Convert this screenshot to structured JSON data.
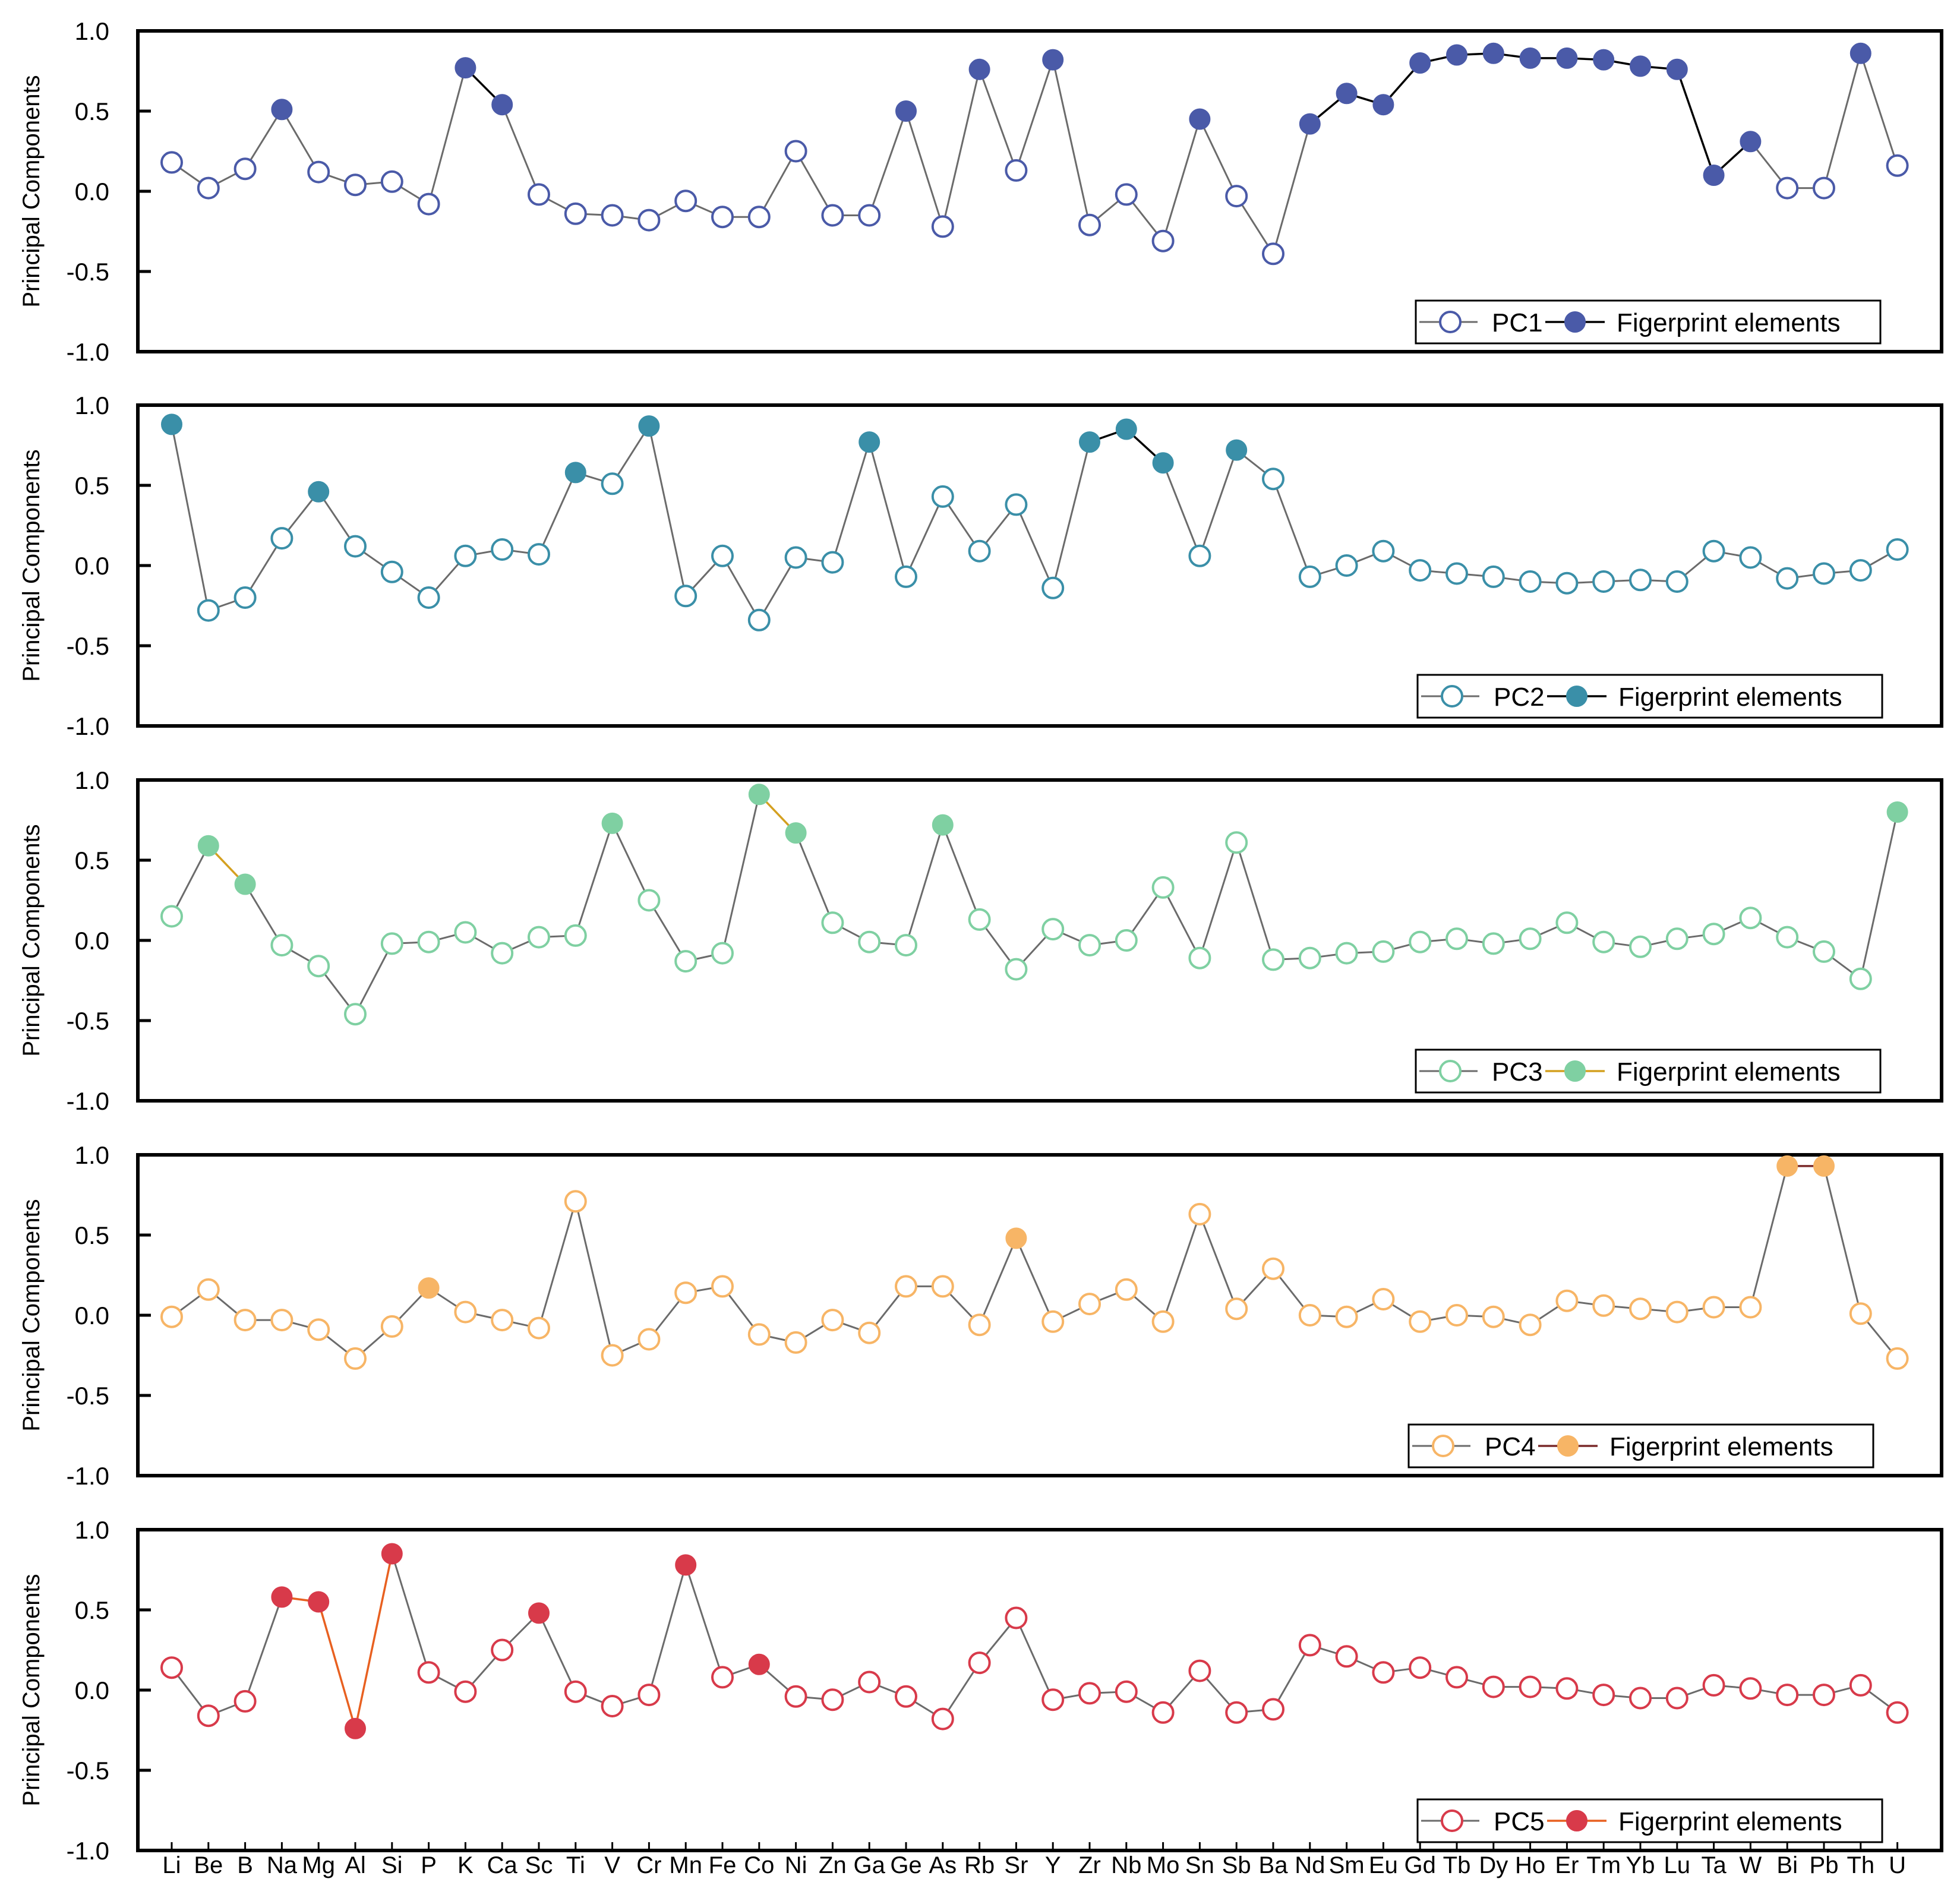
{
  "chart_data": {
    "type": "line",
    "ylabel": "Principal Components",
    "ylim": [
      -1.0,
      1.0
    ],
    "yticks": [
      "1.0",
      "0.5",
      "0.0",
      "-0.5",
      "-1.0"
    ],
    "yticks_values": [
      1.0,
      0.5,
      0.0,
      -0.5,
      -1.0
    ],
    "categories": [
      "Li",
      "Be",
      "B",
      "Na",
      "Mg",
      "Al",
      "Si",
      "P",
      "K",
      "Ca",
      "Sc",
      "Ti",
      "V",
      "Cr",
      "Mn",
      "Fe",
      "Co",
      "Ni",
      "Zn",
      "Ga",
      "Ge",
      "As",
      "Rb",
      "Sr",
      "Y",
      "Zr",
      "Nb",
      "Mo",
      "Sn",
      "Sb",
      "Ba",
      "Nd",
      "Sm",
      "Eu",
      "Gd",
      "Tb",
      "Dy",
      "Ho",
      "Er",
      "Tm",
      "Yb",
      "Lu",
      "Ta",
      "W",
      "Bi",
      "Pb",
      "Th",
      "U"
    ],
    "legend_position": "bottom-right",
    "fingerprint_label": "Figerprint elements",
    "panels": [
      {
        "name": "PC1",
        "color": "#4a5aa8",
        "fingerprint_line_color": "#000000",
        "values": [
          0.18,
          0.02,
          0.14,
          0.51,
          0.12,
          0.04,
          0.06,
          -0.08,
          0.77,
          0.54,
          -0.02,
          -0.14,
          -0.15,
          -0.18,
          -0.06,
          -0.16,
          -0.16,
          0.25,
          -0.15,
          -0.15,
          0.5,
          -0.22,
          0.76,
          0.13,
          0.82,
          -0.21,
          -0.02,
          -0.31,
          0.45,
          -0.03,
          -0.39,
          0.42,
          0.61,
          0.54,
          0.8,
          0.85,
          0.86,
          0.83,
          0.83,
          0.82,
          0.78,
          0.76,
          0.1,
          0.31,
          0.02,
          0.02,
          0.86,
          0.16
        ],
        "fingerprint": [
          3,
          8,
          9,
          20,
          22,
          24,
          28,
          31,
          32,
          33,
          34,
          35,
          36,
          37,
          38,
          39,
          40,
          41,
          42,
          43,
          46
        ]
      },
      {
        "name": "PC2",
        "color": "#3a8fa8",
        "fingerprint_line_color": "#000000",
        "values": [
          0.88,
          -0.28,
          -0.2,
          0.17,
          0.46,
          0.12,
          -0.04,
          -0.2,
          0.06,
          0.1,
          0.07,
          0.58,
          0.51,
          0.87,
          -0.19,
          0.06,
          -0.34,
          0.05,
          0.02,
          0.77,
          -0.07,
          0.43,
          0.09,
          0.38,
          -0.14,
          0.77,
          0.85,
          0.64,
          0.06,
          0.72,
          0.54,
          -0.07,
          0.0,
          0.09,
          -0.03,
          -0.05,
          -0.07,
          -0.1,
          -0.11,
          -0.1,
          -0.09,
          -0.1,
          0.09,
          0.05,
          -0.08,
          -0.05,
          -0.03,
          0.1
        ],
        "fingerprint": [
          0,
          4,
          11,
          13,
          19,
          25,
          26,
          27,
          29
        ]
      },
      {
        "name": "PC3",
        "color": "#7fd0a2",
        "fingerprint_line_color": "#d4a020",
        "values": [
          0.15,
          0.59,
          0.35,
          -0.03,
          -0.16,
          -0.46,
          -0.02,
          -0.01,
          0.05,
          -0.08,
          0.02,
          0.03,
          0.73,
          0.25,
          -0.13,
          -0.08,
          0.91,
          0.67,
          0.11,
          -0.01,
          -0.03,
          0.72,
          0.13,
          -0.18,
          0.07,
          -0.03,
          0.0,
          0.33,
          -0.11,
          0.61,
          -0.12,
          -0.11,
          -0.08,
          -0.07,
          -0.01,
          0.01,
          -0.02,
          0.01,
          0.11,
          -0.01,
          -0.04,
          0.01,
          0.04,
          0.14,
          0.02,
          -0.07,
          -0.24,
          0.8
        ],
        "fingerprint": [
          1,
          2,
          12,
          16,
          17,
          21,
          47
        ]
      },
      {
        "name": "PC4",
        "color": "#f7b566",
        "fingerprint_line_color": "#7a2a2a",
        "values": [
          -0.01,
          0.16,
          -0.03,
          -0.03,
          -0.09,
          -0.27,
          -0.07,
          0.17,
          0.02,
          -0.03,
          -0.08,
          0.71,
          -0.25,
          -0.15,
          0.14,
          0.18,
          -0.12,
          -0.17,
          -0.03,
          -0.11,
          0.18,
          0.18,
          -0.06,
          0.48,
          -0.04,
          0.07,
          0.16,
          -0.04,
          0.63,
          0.04,
          0.29,
          0.0,
          -0.01,
          0.1,
          -0.04,
          0.0,
          -0.01,
          -0.06,
          0.09,
          0.06,
          0.04,
          0.02,
          0.05,
          0.05,
          0.93,
          0.93,
          0.01,
          -0.27
        ],
        "fingerprint": [
          7,
          23,
          44,
          45
        ]
      },
      {
        "name": "PC5",
        "color": "#d83a4a",
        "fingerprint_line_color": "#e86020",
        "values": [
          0.14,
          -0.16,
          -0.07,
          0.58,
          0.55,
          -0.24,
          0.85,
          0.11,
          -0.01,
          0.25,
          0.48,
          -0.01,
          -0.1,
          -0.03,
          0.78,
          0.08,
          0.16,
          -0.04,
          -0.06,
          0.05,
          -0.04,
          -0.18,
          0.17,
          0.45,
          -0.06,
          -0.02,
          -0.01,
          -0.14,
          0.12,
          -0.14,
          -0.12,
          0.28,
          0.21,
          0.11,
          0.14,
          0.08,
          0.02,
          0.02,
          0.01,
          -0.03,
          -0.05,
          -0.05,
          0.03,
          0.01,
          -0.03,
          -0.03,
          0.03,
          -0.14
        ],
        "fingerprint": [
          3,
          4,
          5,
          6,
          10,
          14,
          16
        ]
      }
    ]
  }
}
